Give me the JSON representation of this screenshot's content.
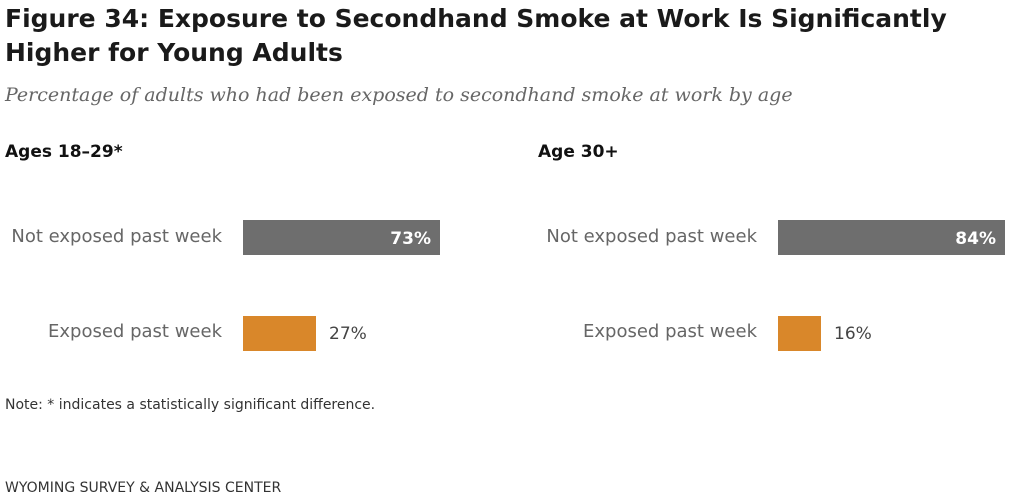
{
  "title": "Figure 34: Exposure to Secondhand Smoke at Work Is Significantly Higher for Young Adults",
  "subtitle": "Percentage of adults who had been exposed to secondhand smoke at work by age",
  "note": "Note: * indicates a statistically significant difference.",
  "source": "WYOMING SURVEY & ANALYSIS CENTER",
  "colors": {
    "not_exposed": "#6e6e6e",
    "exposed": "#d9872a"
  },
  "chart_data": [
    {
      "type": "bar",
      "orientation": "horizontal",
      "title": "Ages 18–29*",
      "categories": [
        "Not exposed past week",
        "Exposed past week"
      ],
      "values": [
        73,
        27
      ],
      "value_labels": [
        "73%",
        "27%"
      ],
      "unit": "%",
      "xlim": [
        0,
        73
      ]
    },
    {
      "type": "bar",
      "orientation": "horizontal",
      "title": "Age 30+",
      "categories": [
        "Not exposed past week",
        "Exposed past week"
      ],
      "values": [
        84,
        16
      ],
      "value_labels": [
        "84%",
        "16%"
      ],
      "unit": "%",
      "xlim": [
        0,
        84
      ]
    }
  ]
}
